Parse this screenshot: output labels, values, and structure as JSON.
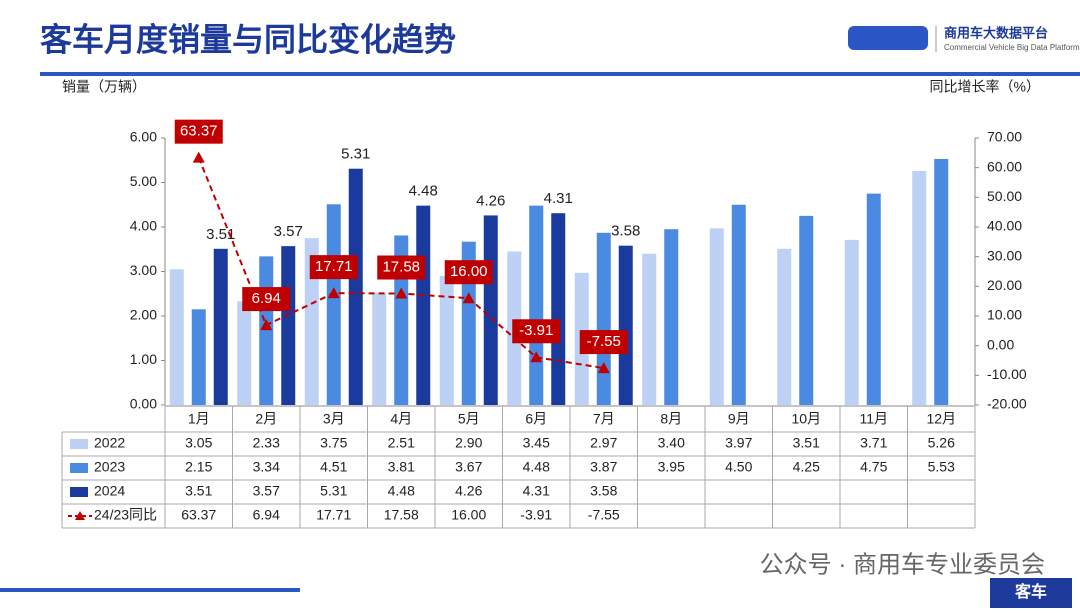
{
  "header": {
    "title": "客车月度销量与同比变化趋势",
    "logo_title": "商用车大数据平台",
    "logo_subtitle": "Commercial Vehicle Big Data Platform"
  },
  "chart_data": {
    "type": "bar",
    "y_label": "销量（万辆）",
    "y2_label": "同比增长率（%）",
    "categories": [
      "1月",
      "2月",
      "3月",
      "4月",
      "5月",
      "6月",
      "7月",
      "8月",
      "9月",
      "10月",
      "11月",
      "12月"
    ],
    "ylim": [
      0,
      6
    ],
    "yticks": [
      {
        "value": 0,
        "label": "0.00"
      },
      {
        "value": 1,
        "label": "1.00"
      },
      {
        "value": 2,
        "label": "2.00"
      },
      {
        "value": 3,
        "label": "3.00"
      },
      {
        "value": 4,
        "label": "4.00"
      },
      {
        "value": 5,
        "label": "5.00"
      },
      {
        "value": 6,
        "label": "6.00"
      }
    ],
    "y2lim": [
      -20,
      70
    ],
    "y2ticks": [
      {
        "value": -20,
        "label": "-20.00"
      },
      {
        "value": -10,
        "label": "-10.00"
      },
      {
        "value": 0,
        "label": "0.00"
      },
      {
        "value": 10,
        "label": "10.00"
      },
      {
        "value": 20,
        "label": "20.00"
      },
      {
        "value": 30,
        "label": "30.00"
      },
      {
        "value": 40,
        "label": "40.00"
      },
      {
        "value": 50,
        "label": "50.00"
      },
      {
        "value": 60,
        "label": "60.00"
      },
      {
        "value": 70,
        "label": "70.00"
      }
    ],
    "series": [
      {
        "name": "2022",
        "type": "bar",
        "color": "#bcd1f3",
        "values": [
          3.05,
          2.33,
          3.75,
          2.51,
          2.9,
          3.45,
          2.97,
          3.4,
          3.97,
          3.51,
          3.71,
          5.26
        ],
        "value_labels": [
          "3.05",
          "2.33",
          "3.75",
          "2.51",
          "2.90",
          "3.45",
          "2.97",
          "3.40",
          "3.97",
          "3.51",
          "3.71",
          "5.26"
        ]
      },
      {
        "name": "2023",
        "type": "bar",
        "color": "#4a8ae0",
        "values": [
          2.15,
          3.34,
          4.51,
          3.81,
          3.67,
          4.48,
          3.87,
          3.95,
          4.5,
          4.25,
          4.75,
          5.53
        ],
        "value_labels": [
          "2.15",
          "3.34",
          "4.51",
          "3.81",
          "3.67",
          "4.48",
          "3.87",
          "3.95",
          "4.50",
          "4.25",
          "4.75",
          "5.53"
        ]
      },
      {
        "name": "2024",
        "type": "bar",
        "color": "#1b3a9e",
        "values": [
          3.51,
          3.57,
          5.31,
          4.48,
          4.26,
          4.31,
          3.58,
          null,
          null,
          null,
          null,
          null
        ],
        "value_labels": [
          "3.51",
          "3.57",
          "5.31",
          "4.48",
          "4.26",
          "4.31",
          "3.58",
          null,
          null,
          null,
          null,
          null
        ],
        "data_labels": true
      },
      {
        "name": "24/23同比",
        "type": "line",
        "axis": "y2",
        "color": "#c00000",
        "values": [
          63.37,
          6.94,
          17.71,
          17.58,
          16,
          -3.91,
          -7.55,
          null,
          null,
          null,
          null,
          null
        ],
        "value_labels": [
          "63.37",
          "6.94",
          "17.71",
          "17.58",
          "16.00",
          "-3.91",
          "-7.55",
          null,
          null,
          null,
          null,
          null
        ],
        "data_labels": true
      }
    ]
  },
  "footer": {
    "source": "公众号 · 商用车专业委员会",
    "badge": "客车"
  }
}
